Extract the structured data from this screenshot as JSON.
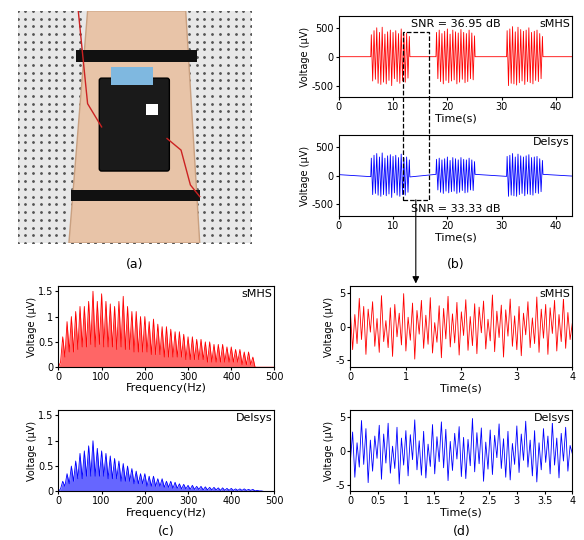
{
  "panel_labels": [
    "(a)",
    "(b)",
    "(c)",
    "(d)"
  ],
  "chart_data": [
    {
      "type": "line",
      "name": "sMHS",
      "annotation": "SNR = 36.95 dB",
      "color": "#ff0000",
      "xlabel": "Time(s)",
      "ylabel": "Voltage (μV)",
      "xlim": [
        0,
        43
      ],
      "xticks": [
        0,
        10,
        20,
        30,
        40
      ],
      "ylim": [
        -700,
        700
      ],
      "yticks": [
        -500,
        0,
        500
      ],
      "x": [
        0,
        5.9,
        6,
        6.25,
        6.5,
        6.75,
        7,
        7.25,
        7.5,
        7.75,
        8,
        8.25,
        8.5,
        8.75,
        9,
        9.25,
        9.5,
        9.75,
        10,
        10.25,
        10.5,
        10.75,
        11,
        11.25,
        11.5,
        11.75,
        12,
        12.25,
        12.5,
        12.75,
        13,
        13.1,
        17.9,
        18,
        18.25,
        18.5,
        18.75,
        19,
        19.25,
        19.5,
        19.75,
        20,
        20.25,
        20.5,
        20.75,
        21,
        21.25,
        21.5,
        21.75,
        22,
        22.25,
        22.5,
        22.75,
        23,
        23.25,
        23.5,
        23.75,
        24,
        24.25,
        24.5,
        24.75,
        25,
        25.1,
        30.9,
        31,
        31.25,
        31.5,
        31.75,
        32,
        32.25,
        32.5,
        32.75,
        33,
        33.25,
        33.5,
        33.75,
        34,
        34.25,
        34.5,
        34.75,
        35,
        35.25,
        35.5,
        35.75,
        36,
        36.25,
        36.5,
        36.75,
        37,
        37.25,
        37.5,
        37.6,
        43
      ],
      "values": [
        0,
        0,
        380,
        -420,
        450,
        -390,
        500,
        -460,
        420,
        -480,
        510,
        -440,
        390,
        -470,
        430,
        -410,
        460,
        -500,
        420,
        -380,
        450,
        -430,
        400,
        -460,
        480,
        -420,
        390,
        -440,
        410,
        -370,
        350,
        0,
        0,
        420,
        -380,
        460,
        -430,
        400,
        -470,
        440,
        -410,
        480,
        -450,
        390,
        -420,
        460,
        -400,
        430,
        -470,
        410,
        -440,
        470,
        -390,
        420,
        -450,
        400,
        -430,
        460,
        -380,
        410,
        -400,
        360,
        0,
        0,
        450,
        -500,
        480,
        -460,
        520,
        -470,
        430,
        -490,
        510,
        -450,
        470,
        -420,
        440,
        -480,
        460,
        -430,
        500,
        -450,
        420,
        -470,
        440,
        -410,
        460,
        -430,
        400,
        -380,
        350,
        0,
        0
      ]
    },
    {
      "type": "line",
      "name": "Delsys",
      "annotation": "SNR = 33.33 dB",
      "color": "#0000ff",
      "xlabel": "Time(s)",
      "ylabel": "Voltage (μV)",
      "xlim": [
        0,
        43
      ],
      "xticks": [
        0,
        10,
        20,
        30,
        40
      ],
      "ylim": [
        -700,
        700
      ],
      "yticks": [
        -500,
        0,
        500
      ],
      "x": [
        0,
        5.9,
        6,
        6.25,
        6.5,
        6.75,
        7,
        7.25,
        7.5,
        7.75,
        8,
        8.25,
        8.5,
        8.75,
        9,
        9.25,
        9.5,
        9.75,
        10,
        10.25,
        10.5,
        10.75,
        11,
        11.25,
        11.5,
        11.75,
        12,
        12.25,
        12.5,
        12.75,
        13,
        13.1,
        17.9,
        18,
        18.25,
        18.5,
        18.75,
        19,
        19.25,
        19.5,
        19.75,
        20,
        20.25,
        20.5,
        20.75,
        21,
        21.25,
        21.5,
        21.75,
        22,
        22.25,
        22.5,
        22.75,
        23,
        23.25,
        23.5,
        23.75,
        24,
        24.25,
        24.5,
        24.75,
        25,
        25.1,
        30.9,
        31,
        31.25,
        31.5,
        31.75,
        32,
        32.25,
        32.5,
        32.75,
        33,
        33.25,
        33.5,
        33.75,
        34,
        34.25,
        34.5,
        34.75,
        35,
        35.25,
        35.5,
        35.75,
        36,
        36.25,
        36.5,
        36.75,
        37,
        37.25,
        37.5,
        37.6,
        43
      ],
      "values": [
        15,
        -20,
        300,
        -330,
        350,
        -310,
        380,
        -340,
        320,
        -360,
        390,
        -330,
        300,
        -350,
        340,
        -320,
        360,
        -380,
        330,
        -300,
        350,
        -340,
        310,
        -360,
        370,
        -330,
        300,
        -340,
        320,
        -290,
        270,
        -25,
        20,
        280,
        -250,
        300,
        -290,
        270,
        -310,
        290,
        -270,
        320,
        -300,
        260,
        -280,
        310,
        -270,
        290,
        -310,
        270,
        -290,
        310,
        -260,
        280,
        -300,
        270,
        -290,
        300,
        -250,
        270,
        -260,
        240,
        20,
        -15,
        330,
        -360,
        350,
        -340,
        380,
        -350,
        320,
        -360,
        370,
        -330,
        340,
        -310,
        320,
        -350,
        340,
        -320,
        360,
        -330,
        310,
        -340,
        320,
        -300,
        330,
        -310,
        290,
        -280,
        260,
        20,
        -10
      ]
    },
    {
      "type": "area",
      "name": "sMHS",
      "color": "#ff0000",
      "xlabel": "Frequency(Hz)",
      "ylabel": "Voltage (μV)",
      "xlim": [
        0,
        500
      ],
      "xticks": [
        0,
        100,
        200,
        300,
        400,
        500
      ],
      "ylim": [
        0,
        1.6
      ],
      "yticks": [
        0,
        0.5,
        1,
        1.5
      ],
      "x": [
        0,
        5,
        10,
        15,
        20,
        25,
        30,
        35,
        40,
        45,
        50,
        55,
        60,
        65,
        70,
        75,
        80,
        85,
        90,
        95,
        100,
        105,
        110,
        115,
        120,
        125,
        130,
        135,
        140,
        145,
        150,
        155,
        160,
        165,
        170,
        175,
        180,
        185,
        190,
        195,
        200,
        205,
        210,
        215,
        220,
        225,
        230,
        235,
        240,
        245,
        250,
        255,
        260,
        265,
        270,
        275,
        280,
        285,
        290,
        295,
        300,
        305,
        310,
        315,
        320,
        325,
        330,
        335,
        340,
        345,
        350,
        355,
        360,
        365,
        370,
        375,
        380,
        385,
        390,
        395,
        400,
        405,
        410,
        415,
        420,
        425,
        430,
        435,
        440,
        445,
        450,
        455,
        460,
        465,
        470,
        475,
        480,
        485,
        490,
        495,
        500
      ],
      "values": [
        0,
        0.1,
        0.6,
        0.2,
        0.9,
        0.3,
        1,
        0.3,
        1.1,
        0.35,
        1.2,
        0.4,
        1.2,
        0.4,
        1.3,
        0.45,
        1.5,
        0.4,
        1.3,
        0.45,
        1.45,
        0.4,
        1.3,
        0.4,
        1.25,
        0.4,
        1.2,
        0.35,
        1.3,
        0.4,
        1.4,
        0.35,
        1.2,
        0.35,
        1.1,
        0.3,
        1.1,
        0.3,
        1,
        0.3,
        1,
        0.3,
        0.9,
        0.25,
        0.95,
        0.25,
        0.85,
        0.25,
        0.8,
        0.2,
        0.8,
        0.2,
        0.75,
        0.2,
        0.7,
        0.2,
        0.7,
        0.2,
        0.65,
        0.15,
        0.6,
        0.15,
        0.6,
        0.15,
        0.55,
        0.15,
        0.55,
        0.15,
        0.5,
        0.1,
        0.5,
        0.1,
        0.45,
        0.1,
        0.45,
        0.1,
        0.45,
        0.1,
        0.4,
        0.1,
        0.4,
        0.1,
        0.35,
        0.1,
        0.35,
        0.05,
        0.3,
        0.05,
        0.3,
        0.05,
        0.2,
        0,
        0,
        0,
        0,
        0,
        0,
        0,
        0,
        0,
        0
      ]
    },
    {
      "type": "area",
      "name": "Delsys",
      "color": "#0000ff",
      "xlabel": "Frequency(Hz)",
      "ylabel": "Voltage (μV)",
      "xlim": [
        0,
        500
      ],
      "xticks": [
        0,
        100,
        200,
        300,
        400,
        500
      ],
      "ylim": [
        0,
        1.6
      ],
      "yticks": [
        0,
        0.5,
        1,
        1.5
      ],
      "x": [
        0,
        5,
        10,
        15,
        20,
        25,
        30,
        35,
        40,
        45,
        50,
        55,
        60,
        65,
        70,
        75,
        80,
        85,
        90,
        95,
        100,
        105,
        110,
        115,
        120,
        125,
        130,
        135,
        140,
        145,
        150,
        155,
        160,
        165,
        170,
        175,
        180,
        185,
        190,
        195,
        200,
        205,
        210,
        215,
        220,
        225,
        230,
        235,
        240,
        245,
        250,
        255,
        260,
        265,
        270,
        275,
        280,
        285,
        290,
        295,
        300,
        305,
        310,
        315,
        320,
        325,
        330,
        335,
        340,
        345,
        350,
        355,
        360,
        365,
        370,
        375,
        380,
        385,
        390,
        395,
        400,
        405,
        410,
        415,
        420,
        425,
        430,
        435,
        440,
        445,
        450,
        455,
        460,
        465,
        470,
        475,
        480,
        485,
        490,
        495,
        500
      ],
      "values": [
        0,
        0.05,
        0.2,
        0.1,
        0.35,
        0.15,
        0.5,
        0.2,
        0.6,
        0.25,
        0.75,
        0.25,
        0.8,
        0.3,
        0.9,
        0.3,
        1,
        0.3,
        0.85,
        0.3,
        0.8,
        0.3,
        0.75,
        0.25,
        0.7,
        0.25,
        0.65,
        0.25,
        0.6,
        0.2,
        0.55,
        0.2,
        0.5,
        0.2,
        0.45,
        0.15,
        0.4,
        0.15,
        0.35,
        0.15,
        0.35,
        0.1,
        0.3,
        0.1,
        0.3,
        0.1,
        0.25,
        0.1,
        0.25,
        0.08,
        0.2,
        0.08,
        0.2,
        0.06,
        0.18,
        0.06,
        0.15,
        0.05,
        0.14,
        0.05,
        0.12,
        0.04,
        0.12,
        0.04,
        0.1,
        0.04,
        0.1,
        0.03,
        0.09,
        0.03,
        0.08,
        0.03,
        0.08,
        0.03,
        0.07,
        0.02,
        0.07,
        0.02,
        0.06,
        0.02,
        0.06,
        0.02,
        0.05,
        0.02,
        0.05,
        0.02,
        0.05,
        0.02,
        0.04,
        0.02,
        0.04,
        0.01,
        0.02,
        0.01,
        0.01,
        0,
        0,
        0,
        0,
        0,
        0
      ]
    },
    {
      "type": "line",
      "name": "sMHS",
      "color": "#ff0000",
      "xlabel": "Time(s)",
      "ylabel": "Voltage (μV)",
      "xlim": [
        0,
        4
      ],
      "xticks": [
        0,
        1,
        2,
        3,
        4
      ],
      "ylim": [
        -6,
        6
      ],
      "yticks": [
        -5,
        0,
        5
      ],
      "x": [
        0,
        0.04,
        0.08,
        0.12,
        0.16,
        0.2,
        0.24,
        0.28,
        0.32,
        0.36,
        0.4,
        0.44,
        0.48,
        0.52,
        0.56,
        0.6,
        0.64,
        0.68,
        0.72,
        0.76,
        0.8,
        0.84,
        0.88,
        0.92,
        0.96,
        1,
        1.04,
        1.08,
        1.12,
        1.16,
        1.2,
        1.24,
        1.28,
        1.32,
        1.36,
        1.4,
        1.44,
        1.48,
        1.52,
        1.56,
        1.6,
        1.64,
        1.68,
        1.72,
        1.76,
        1.8,
        1.84,
        1.88,
        1.92,
        1.96,
        2,
        2.04,
        2.08,
        2.12,
        2.16,
        2.2,
        2.24,
        2.28,
        2.32,
        2.36,
        2.4,
        2.44,
        2.48,
        2.52,
        2.56,
        2.6,
        2.64,
        2.68,
        2.72,
        2.76,
        2.8,
        2.84,
        2.88,
        2.92,
        2.96,
        3,
        3.04,
        3.08,
        3.12,
        3.16,
        3.2,
        3.24,
        3.28,
        3.32,
        3.36,
        3.4,
        3.44,
        3.48,
        3.52,
        3.56,
        3.6,
        3.64,
        3.68,
        3.72,
        3.76,
        3.8,
        3.84,
        3.88,
        3.92,
        3.96,
        4
      ],
      "values": [
        2.1,
        -3.4,
        1.8,
        -2.5,
        4.2,
        -1.9,
        3.0,
        -4.1,
        2.6,
        -0.8,
        3.7,
        -2.9,
        1.2,
        -3.8,
        4.6,
        -2.2,
        0.9,
        -3.1,
        2.8,
        -4.4,
        3.3,
        -1.5,
        2.0,
        -2.7,
        4.9,
        -3.6,
        1.4,
        -2.0,
        3.5,
        -4.8,
        2.4,
        -1.1,
        3.9,
        -3.2,
        1.7,
        -2.6,
        4.3,
        -3.9,
        0.6,
        -2.3,
        3.1,
        -4.6,
        2.7,
        -1.8,
        4.5,
        -3.0,
        1.9,
        -2.4,
        3.6,
        -4.2,
        2.2,
        -1.3,
        4.0,
        -3.5,
        1.5,
        -2.8,
        3.4,
        -4.0,
        2.9,
        -0.9,
        3.8,
        -3.3,
        1.1,
        -2.1,
        4.7,
        -3.7,
        2.3,
        -1.6,
        3.2,
        -4.5,
        2.5,
        -1.4,
        4.1,
        -2.9,
        1.6,
        -3.4,
        3.0,
        -4.3,
        2.0,
        -1.2,
        3.7,
        -3.1,
        1.3,
        -2.5,
        4.4,
        -3.8,
        2.6,
        -1.7,
        3.3,
        -4.1,
        2.8,
        -1.0,
        3.9,
        -3.6,
        1.8,
        -2.2,
        4.2,
        -3.2,
        2.1,
        -1.9,
        0.5
      ]
    },
    {
      "type": "line",
      "name": "Delsys",
      "color": "#0000ff",
      "xlabel": "Time(s)",
      "ylabel": "Voltage (μV)",
      "xlim": [
        0,
        4
      ],
      "xticks": [
        0,
        0.5,
        1,
        1.5,
        2,
        2.5,
        3,
        3.5,
        4
      ],
      "ylim": [
        -6,
        6
      ],
      "yticks": [
        -5,
        0,
        5
      ],
      "x": [
        0,
        0.04,
        0.08,
        0.12,
        0.16,
        0.2,
        0.24,
        0.28,
        0.32,
        0.36,
        0.4,
        0.44,
        0.48,
        0.52,
        0.56,
        0.6,
        0.64,
        0.68,
        0.72,
        0.76,
        0.8,
        0.84,
        0.88,
        0.92,
        0.96,
        1,
        1.04,
        1.08,
        1.12,
        1.16,
        1.2,
        1.24,
        1.28,
        1.32,
        1.36,
        1.4,
        1.44,
        1.48,
        1.52,
        1.56,
        1.6,
        1.64,
        1.68,
        1.72,
        1.76,
        1.8,
        1.84,
        1.88,
        1.92,
        1.96,
        2,
        2.04,
        2.08,
        2.12,
        2.16,
        2.2,
        2.24,
        2.28,
        2.32,
        2.36,
        2.4,
        2.44,
        2.48,
        2.52,
        2.56,
        2.6,
        2.64,
        2.68,
        2.72,
        2.76,
        2.8,
        2.84,
        2.88,
        2.92,
        2.96,
        3,
        3.04,
        3.08,
        3.12,
        3.16,
        3.2,
        3.24,
        3.28,
        3.32,
        3.36,
        3.4,
        3.44,
        3.48,
        3.52,
        3.56,
        3.6,
        3.64,
        3.68,
        3.72,
        3.76,
        3.8,
        3.84,
        3.88,
        3.92,
        3.96,
        4
      ],
      "values": [
        -1.5,
        2.8,
        -3.9,
        1.2,
        -2.4,
        4.5,
        -2.0,
        3.3,
        -4.7,
        1.6,
        -3.0,
        2.2,
        -1.1,
        3.8,
        -4.2,
        2.5,
        -1.8,
        4.1,
        -3.3,
        0.7,
        -2.6,
        3.5,
        -4.9,
        1.9,
        -2.1,
        3.0,
        -3.7,
        2.4,
        -1.3,
        4.6,
        -2.8,
        1.5,
        -3.6,
        2.9,
        -4.0,
        1.0,
        -2.3,
        3.9,
        -3.4,
        2.1,
        -1.6,
        4.3,
        -2.5,
        3.2,
        -4.4,
        1.4,
        -2.9,
        2.6,
        -1.2,
        3.6,
        -3.8,
        2.0,
        -4.1,
        1.7,
        -2.2,
        4.8,
        -3.1,
        2.7,
        -1.9,
        3.4,
        -4.5,
        1.3,
        -2.7,
        3.1,
        -3.5,
        2.3,
        -1.0,
        4.0,
        -2.6,
        1.8,
        -3.9,
        2.9,
        -4.3,
        1.1,
        -2.0,
        3.7,
        -3.2,
        2.5,
        -1.4,
        4.4,
        -2.4,
        1.6,
        -3.7,
        3.0,
        -4.6,
        1.2,
        -2.8,
        3.3,
        -1.7,
        2.2,
        -3.4,
        4.2,
        -2.1,
        1.9,
        -4.0,
        2.6,
        -1.5,
        3.5,
        -3.0,
        0.8,
        -0.4
      ]
    }
  ]
}
